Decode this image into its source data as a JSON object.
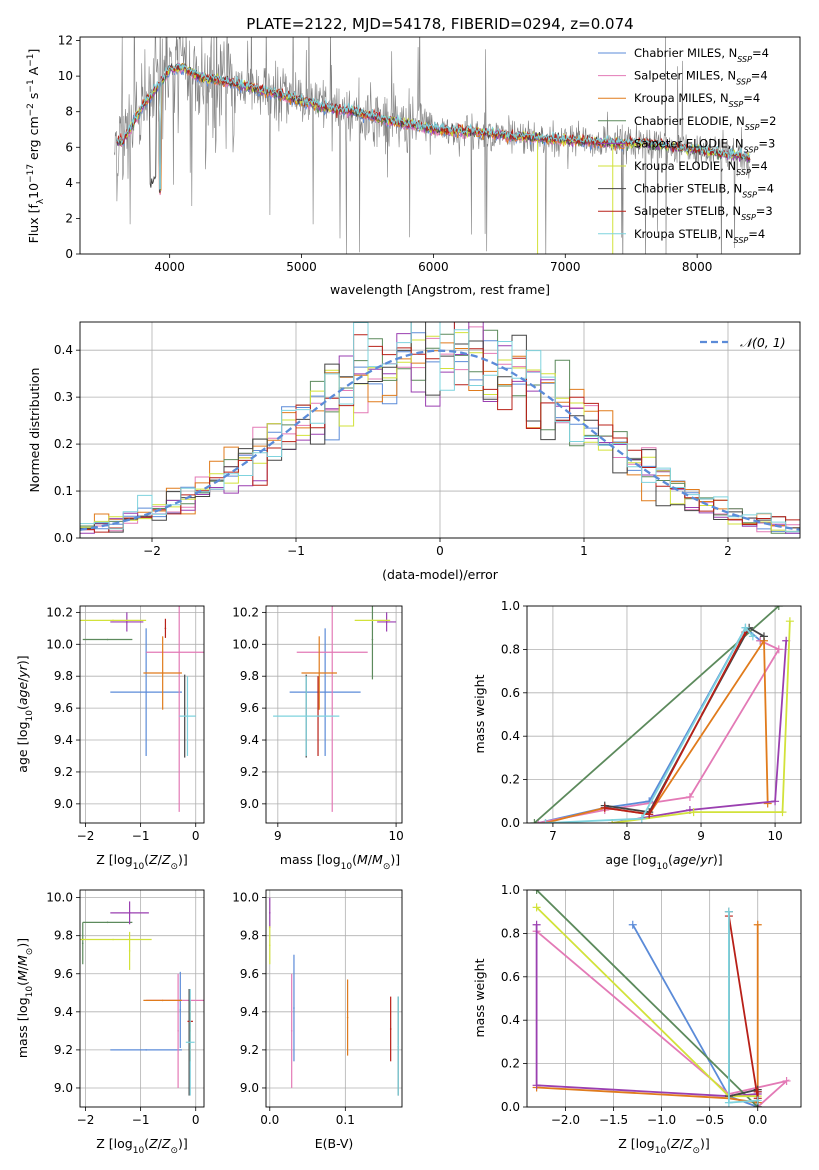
{
  "title": "PLATE=2122, MJD=54178, FIBERID=0294, z=0.074",
  "colors": {
    "chabrier_miles": "#5b8bd8",
    "salpeter_miles": "#e37ab6",
    "kroupa_miles": "#e07b1c",
    "chabrier_elodie": "#5c8a5c",
    "salpeter_elodie": "#9a3fb0",
    "kroupa_elodie": "#d2e23a",
    "chabrier_stelib": "#444444",
    "salpeter_stelib": "#b82018",
    "kroupa_stelib": "#7fd3de",
    "data_grey": "#808080"
  },
  "chart_data": [
    {
      "id": "spectrum",
      "type": "line",
      "title": "PLATE=2122, MJD=54178, FIBERID=0294, z=0.074",
      "xlabel": "wavelength [Angstrom, rest frame]",
      "ylabel": "Flux [fλ10⁻¹⁷ erg cm⁻² s⁻¹ A⁻¹]",
      "xlim": [
        3320,
        8780
      ],
      "ylim": [
        0,
        12.2
      ],
      "xticks": [
        4000,
        5000,
        6000,
        7000,
        8000
      ],
      "yticks": [
        0,
        2,
        4,
        6,
        8,
        10,
        12
      ],
      "grid": false,
      "legend": "top-right",
      "legend_entries": [
        {
          "label": "Chabrier MILES, N",
          "sub": "SSP",
          "suffix": "=4",
          "color": "#5b8bd8"
        },
        {
          "label": "Salpeter MILES, N",
          "sub": "SSP",
          "suffix": "=4",
          "color": "#e37ab6"
        },
        {
          "label": "Kroupa MILES, N",
          "sub": "SSP",
          "suffix": "=4",
          "color": "#e07b1c"
        },
        {
          "label": "Chabrier ELODIE, N",
          "sub": "SSP",
          "suffix": "=2",
          "color": "#5c8a5c"
        },
        {
          "label": "Salpeter ELODIE, N",
          "sub": "SSP",
          "suffix": "=3",
          "color": "#9a3fb0"
        },
        {
          "label": "Kroupa ELODIE, N",
          "sub": "SSP",
          "suffix": "=4",
          "color": "#d2e23a"
        },
        {
          "label": "Chabrier STELIB, N",
          "sub": "SSP",
          "suffix": "=4",
          "color": "#444444"
        },
        {
          "label": "Salpeter STELIB, N",
          "sub": "SSP",
          "suffix": "=3",
          "color": "#b82018"
        },
        {
          "label": "Kroupa STELIB, N",
          "sub": "SSP",
          "suffix": "=4",
          "color": "#7fd3de"
        }
      ],
      "continuum": {
        "x": [
          3580,
          3650,
          3700,
          3800,
          3900,
          4000,
          4100,
          4200,
          4400,
          4600,
          4800,
          5000,
          5200,
          5400,
          5600,
          5800,
          6000,
          6200,
          6400,
          6600,
          6800,
          7000,
          7200,
          7400,
          7600,
          7800,
          8000,
          8200,
          8400
        ],
        "y": [
          6.2,
          6.4,
          7.0,
          8.4,
          9.3,
          10.4,
          10.5,
          10.0,
          9.7,
          9.4,
          9.0,
          8.6,
          8.2,
          8.0,
          7.6,
          7.3,
          7.0,
          6.9,
          6.8,
          6.6,
          6.5,
          6.4,
          6.3,
          6.2,
          6.2,
          6.0,
          5.8,
          5.6,
          5.4
        ]
      }
    },
    {
      "id": "residuals",
      "type": "histogram",
      "xlabel": "(data-model)/error",
      "ylabel": "Normed distribution",
      "xlim": [
        -2.5,
        2.5
      ],
      "ylim": [
        0,
        0.46
      ],
      "xticks": [
        -2,
        -1,
        0,
        1,
        2
      ],
      "yticks": [
        0.0,
        0.1,
        0.2,
        0.3,
        0.4
      ],
      "grid": true,
      "legend": "top-right",
      "legend_label": "𝒩(0, 1)",
      "gaussian": {
        "mean": 0,
        "sigma": 1
      }
    },
    {
      "id": "age_vs_Z",
      "type": "scatter",
      "xlabel": "Z [log₁₀(Z/Z⊙)]",
      "ylabel": "age  [log₁₀(age/yr)]",
      "xlim": [
        -2.1,
        0.15
      ],
      "ylim": [
        8.88,
        10.24
      ],
      "xticks": [
        -2,
        -1,
        0
      ],
      "yticks": [
        9.0,
        9.2,
        9.4,
        9.6,
        9.8,
        10.0,
        10.2
      ],
      "grid": true,
      "points": [
        {
          "color": "#5b8bd8",
          "x": -0.9,
          "xerr": 0.65,
          "y": 9.7,
          "yerr": 0.4
        },
        {
          "color": "#e37ab6",
          "x": -0.3,
          "xerr": 0.6,
          "y": 9.95,
          "yerr": 1.0
        },
        {
          "color": "#e07b1c",
          "x": -0.6,
          "xerr": 0.35,
          "y": 9.82,
          "yerr": 0.23
        },
        {
          "color": "#5c8a5c",
          "x": -1.6,
          "xerr": 0.45,
          "y": 10.03,
          "yerr": 0.0
        },
        {
          "color": "#9a3fb0",
          "x": -1.25,
          "xerr": 0.3,
          "y": 10.14,
          "yerr": 0.06
        },
        {
          "color": "#d2e23a",
          "x": -1.5,
          "xerr": 0.6,
          "y": 10.15,
          "yerr": 0.0
        },
        {
          "color": "#444444",
          "x": -0.2,
          "xerr": 0.0,
          "y": 9.55,
          "yerr": 0.26
        },
        {
          "color": "#b82018",
          "x": -0.55,
          "xerr": 0.0,
          "y": 10.1,
          "yerr": 0.06
        },
        {
          "color": "#7fd3de",
          "x": -0.15,
          "xerr": 0.15,
          "y": 9.55,
          "yerr": 0.25
        }
      ]
    },
    {
      "id": "age_vs_mass",
      "type": "scatter",
      "xlabel": "mass [log₁₀(M/M⊙)]",
      "ylabel": "",
      "xlim": [
        8.9,
        10.05
      ],
      "ylim": [
        8.88,
        10.24
      ],
      "xticks": [
        9,
        10
      ],
      "yticks": [
        9.0,
        9.2,
        9.4,
        9.6,
        9.8,
        10.0,
        10.2
      ],
      "grid": true,
      "points": [
        {
          "color": "#5b8bd8",
          "x": 9.4,
          "xerr": 0.3,
          "y": 9.7,
          "yerr": 0.4
        },
        {
          "color": "#e37ab6",
          "x": 9.46,
          "xerr": 0.3,
          "y": 9.95,
          "yerr": 1.0
        },
        {
          "color": "#e07b1c",
          "x": 9.35,
          "xerr": 0.15,
          "y": 9.82,
          "yerr": 0.23
        },
        {
          "color": "#5c8a5c",
          "x": 9.8,
          "xerr": 0.0,
          "y": 10.03,
          "yerr": 0.25
        },
        {
          "color": "#9a3fb0",
          "x": 9.92,
          "xerr": 0.08,
          "y": 10.14,
          "yerr": 0.06
        },
        {
          "color": "#d2e23a",
          "x": 9.8,
          "xerr": 0.15,
          "y": 10.15,
          "yerr": 0.0
        },
        {
          "color": "#444444",
          "x": 9.24,
          "xerr": 0.0,
          "y": 9.55,
          "yerr": 0.26
        },
        {
          "color": "#b82018",
          "x": 9.34,
          "xerr": 0.0,
          "y": 9.55,
          "yerr": 0.25
        },
        {
          "color": "#7fd3de",
          "x": 9.24,
          "xerr": 0.28,
          "y": 9.55,
          "yerr": 0.25
        }
      ]
    },
    {
      "id": "weight_vs_age",
      "type": "line",
      "xlabel": "age  [log₁₀(age/yr)]",
      "ylabel": "mass weight",
      "xlim": [
        6.65,
        10.35
      ],
      "ylim": [
        0,
        1.0
      ],
      "xticks": [
        7,
        8,
        9,
        10
      ],
      "yticks": [
        0.0,
        0.2,
        0.4,
        0.6,
        0.8,
        1.0
      ],
      "grid": true,
      "series": [
        {
          "color": "#5b8bd8",
          "x": [
            6.8,
            7.7,
            8.3,
            9.6,
            9.8
          ],
          "y": [
            0.0,
            0.07,
            0.1,
            0.9,
            0.84
          ]
        },
        {
          "color": "#e37ab6",
          "x": [
            6.8,
            7.7,
            8.85,
            10.05,
            9.8
          ],
          "y": [
            0.0,
            0.06,
            0.12,
            0.8,
            0.84
          ]
        },
        {
          "color": "#e07b1c",
          "x": [
            6.9,
            7.7,
            8.3,
            9.85,
            9.9
          ],
          "y": [
            0.0,
            0.07,
            0.04,
            0.84,
            0.09
          ]
        },
        {
          "color": "#5c8a5c",
          "x": [
            6.75,
            10.05
          ],
          "y": [
            0.0,
            1.0
          ]
        },
        {
          "color": "#9a3fb0",
          "x": [
            7.8,
            8.85,
            10.0,
            10.15
          ],
          "y": [
            0.0,
            0.06,
            0.1,
            0.84
          ]
        },
        {
          "color": "#d2e23a",
          "x": [
            7.8,
            8.9,
            10.1,
            10.2
          ],
          "y": [
            0.0,
            0.05,
            0.05,
            0.93
          ]
        },
        {
          "color": "#444444",
          "x": [
            7.7,
            8.3,
            9.65,
            9.85
          ],
          "y": [
            0.08,
            0.05,
            0.9,
            0.86
          ]
        },
        {
          "color": "#b82018",
          "x": [
            7.7,
            8.3,
            9.6
          ],
          "y": [
            0.07,
            0.04,
            0.88
          ]
        },
        {
          "color": "#7fd3de",
          "x": [
            6.9,
            8.2,
            9.6,
            9.7
          ],
          "y": [
            0.0,
            0.02,
            0.9,
            0.86
          ]
        }
      ]
    },
    {
      "id": "mass_vs_Z",
      "type": "scatter",
      "xlabel": "Z [log₁₀(Z/Z⊙)]",
      "ylabel": "mass [log₁₀(M/M⊙)]",
      "xlim": [
        -2.1,
        0.15
      ],
      "ylim": [
        8.9,
        10.04
      ],
      "xticks": [
        -2,
        -1,
        0
      ],
      "yticks": [
        9.0,
        9.2,
        9.4,
        9.6,
        9.8,
        10.0
      ],
      "grid": true,
      "points": [
        {
          "color": "#5b8bd8",
          "x": -0.9,
          "xerr": 0.65,
          "y": 9.2,
          "yerr": 0.0
        },
        {
          "color": "#5b8bd8",
          "x": -0.28,
          "xerr": 0.0,
          "y": 9.41,
          "yerr": 0.2
        },
        {
          "color": "#e37ab6",
          "x": -0.3,
          "xerr": 0.6,
          "y": 9.46,
          "yerr": 0.0
        },
        {
          "color": "#e37ab6",
          "x": -0.32,
          "xerr": 0.0,
          "y": 9.3,
          "yerr": 0.3
        },
        {
          "color": "#e07b1c",
          "x": -0.6,
          "xerr": 0.35,
          "y": 9.46,
          "yerr": 0.0
        },
        {
          "color": "#e07b1c",
          "x": -0.1,
          "xerr": 0.0,
          "y": 9.3,
          "yerr": 0.16
        },
        {
          "color": "#5c8a5c",
          "x": -1.6,
          "xerr": 0.45,
          "y": 9.87,
          "yerr": 0.0
        },
        {
          "color": "#5c8a5c",
          "x": -2.05,
          "xerr": 0.0,
          "y": 9.76,
          "yerr": 0.11
        },
        {
          "color": "#9a3fb0",
          "x": -1.2,
          "xerr": 0.35,
          "y": 9.92,
          "yerr": 0.06
        },
        {
          "color": "#d2e23a",
          "x": -1.5,
          "xerr": 0.7,
          "y": 9.78,
          "yerr": 0.0
        },
        {
          "color": "#d2e23a",
          "x": -1.2,
          "xerr": 0.0,
          "y": 9.72,
          "yerr": 0.1
        },
        {
          "color": "#444444",
          "x": -0.12,
          "xerr": 0.0,
          "y": 9.24,
          "yerr": 0.28
        },
        {
          "color": "#b82018",
          "x": -0.1,
          "xerr": 0.05,
          "y": 9.35,
          "yerr": 0.0
        },
        {
          "color": "#7fd3de",
          "x": -0.1,
          "xerr": 0.08,
          "y": 9.24,
          "yerr": 0.28
        }
      ]
    },
    {
      "id": "mass_vs_ebv",
      "type": "scatter",
      "xlabel": "E(B-V)",
      "ylabel": "",
      "xlim": [
        -0.005,
        0.175
      ],
      "ylim": [
        8.9,
        10.04
      ],
      "xticks": [
        0.0,
        0.1
      ],
      "yticks": [
        9.0,
        9.2,
        9.4,
        9.6,
        9.8,
        10.0
      ],
      "grid": true,
      "points": [
        {
          "color": "#9a3fb0",
          "x": 0.0,
          "y": 9.92,
          "yerr": 0.08
        },
        {
          "color": "#d2e23a",
          "x": 0.0,
          "y": 9.75,
          "yerr": 0.1
        },
        {
          "color": "#e37ab6",
          "x": 0.029,
          "y": 9.3,
          "yerr": 0.3
        },
        {
          "color": "#5b8bd8",
          "x": 0.032,
          "y": 9.42,
          "yerr": 0.28
        },
        {
          "color": "#e07b1c",
          "x": 0.103,
          "y": 9.37,
          "yerr": 0.2
        },
        {
          "color": "#b82018",
          "x": 0.16,
          "y": 9.31,
          "yerr": 0.17
        },
        {
          "color": "#444444",
          "x": 0.17,
          "y": 9.22,
          "yerr": 0.26
        },
        {
          "color": "#7fd3de",
          "x": 0.17,
          "y": 9.22,
          "yerr": 0.26
        }
      ]
    },
    {
      "id": "weight_vs_Z",
      "type": "line",
      "xlabel": "Z [log₁₀(Z/Z⊙)]",
      "ylabel": "mass weight",
      "xlim": [
        -2.4,
        0.45
      ],
      "ylim": [
        0,
        1.0
      ],
      "xticks": [
        -2.0,
        -1.5,
        -1.0,
        -0.5,
        0.0
      ],
      "yticks": [
        0.0,
        0.2,
        0.4,
        0.6,
        0.8,
        1.0
      ],
      "grid": true,
      "series": [
        {
          "color": "#5b8bd8",
          "x": [
            -1.3,
            -0.3,
            0.0,
            0.0
          ],
          "y": [
            0.84,
            0.05,
            0.0,
            0.07
          ]
        },
        {
          "color": "#e37ab6",
          "x": [
            -2.3,
            -0.3,
            0.3,
            0.0
          ],
          "y": [
            0.81,
            0.06,
            0.12,
            0.0
          ]
        },
        {
          "color": "#e07b1c",
          "x": [
            -2.3,
            -0.3,
            0.0,
            0.0
          ],
          "y": [
            0.09,
            0.04,
            0.02,
            0.84
          ]
        },
        {
          "color": "#5c8a5c",
          "x": [
            -2.3,
            0.0
          ],
          "y": [
            1.0,
            0.0
          ]
        },
        {
          "color": "#9a3fb0",
          "x": [
            -2.3,
            -2.3,
            -0.3,
            0.0
          ],
          "y": [
            0.84,
            0.1,
            0.05,
            0.06
          ]
        },
        {
          "color": "#d2e23a",
          "x": [
            -2.3,
            -0.3,
            0.0
          ],
          "y": [
            0.92,
            0.05,
            0.05
          ]
        },
        {
          "color": "#444444",
          "x": [
            -0.3,
            -0.3,
            0.0,
            0.0
          ],
          "y": [
            0.9,
            0.05,
            0.08,
            0.0
          ]
        },
        {
          "color": "#b82018",
          "x": [
            -0.3,
            0.0,
            0.0
          ],
          "y": [
            0.88,
            0.04,
            0.07
          ]
        },
        {
          "color": "#7fd3de",
          "x": [
            -0.3,
            -0.3,
            0.0
          ],
          "y": [
            0.9,
            0.02,
            0.03
          ]
        }
      ]
    }
  ]
}
